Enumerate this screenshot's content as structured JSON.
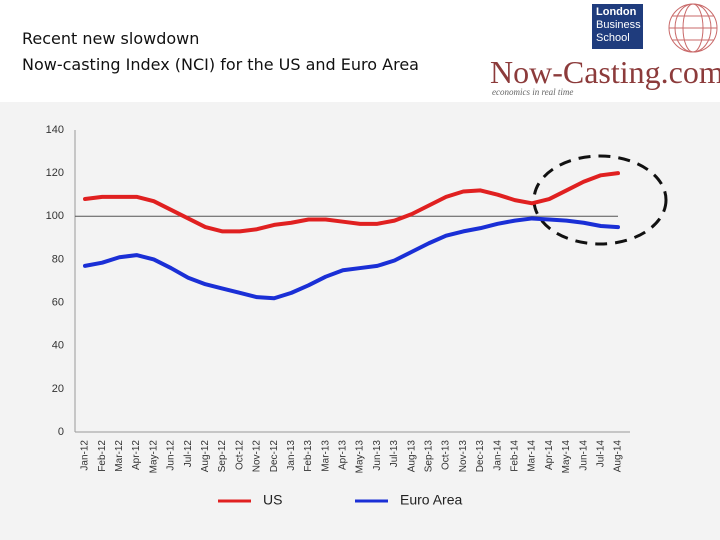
{
  "header": {
    "title_lines": [
      "Recent new slowdown",
      "Now-casting Index (NCI) for the US and Euro Area"
    ]
  },
  "logo": {
    "school": [
      "London",
      "Business",
      "School"
    ],
    "brand": "Now-Casting.com",
    "tagline": "economics in real time"
  },
  "chart_data": {
    "type": "line",
    "categories": [
      "Jan-12",
      "Feb-12",
      "Mar-12",
      "Apr-12",
      "May-12",
      "Jun-12",
      "Jul-12",
      "Aug-12",
      "Sep-12",
      "Oct-12",
      "Nov-12",
      "Dec-12",
      "Jan-13",
      "Feb-13",
      "Mar-13",
      "Apr-13",
      "May-13",
      "Jun-13",
      "Jul-13",
      "Aug-13",
      "Sep-13",
      "Oct-13",
      "Nov-13",
      "Dec-13",
      "Jan-14",
      "Feb-14",
      "Mar-14",
      "Apr-14",
      "May-14",
      "Jun-14",
      "Jul-14",
      "Aug-14"
    ],
    "series": [
      {
        "name": "US",
        "color": "#e02020",
        "values": [
          108,
          109,
          109,
          109,
          107,
          103,
          99,
          95,
          93,
          93,
          94,
          96,
          97,
          98.5,
          98.5,
          97.5,
          96.5,
          96.5,
          98,
          101,
          105,
          109,
          111.5,
          112,
          110,
          107.5,
          106,
          108,
          112,
          116,
          119,
          120
        ]
      },
      {
        "name": "Euro Area",
        "color": "#1a2fd6",
        "values": [
          77,
          78.5,
          81,
          82,
          80,
          76,
          71.5,
          68.5,
          66.5,
          64.5,
          62.5,
          62,
          64.5,
          68,
          72,
          75,
          76,
          77,
          79.5,
          83.5,
          87.5,
          91,
          93,
          94.5,
          96.5,
          98,
          99,
          98.5,
          98,
          97,
          95.5,
          95
        ]
      }
    ],
    "reference_line": 100,
    "ylim": [
      0,
      140
    ],
    "yticks": [
      0,
      20,
      40,
      60,
      80,
      100,
      120,
      140
    ],
    "grid": false,
    "legend": "bottom"
  }
}
